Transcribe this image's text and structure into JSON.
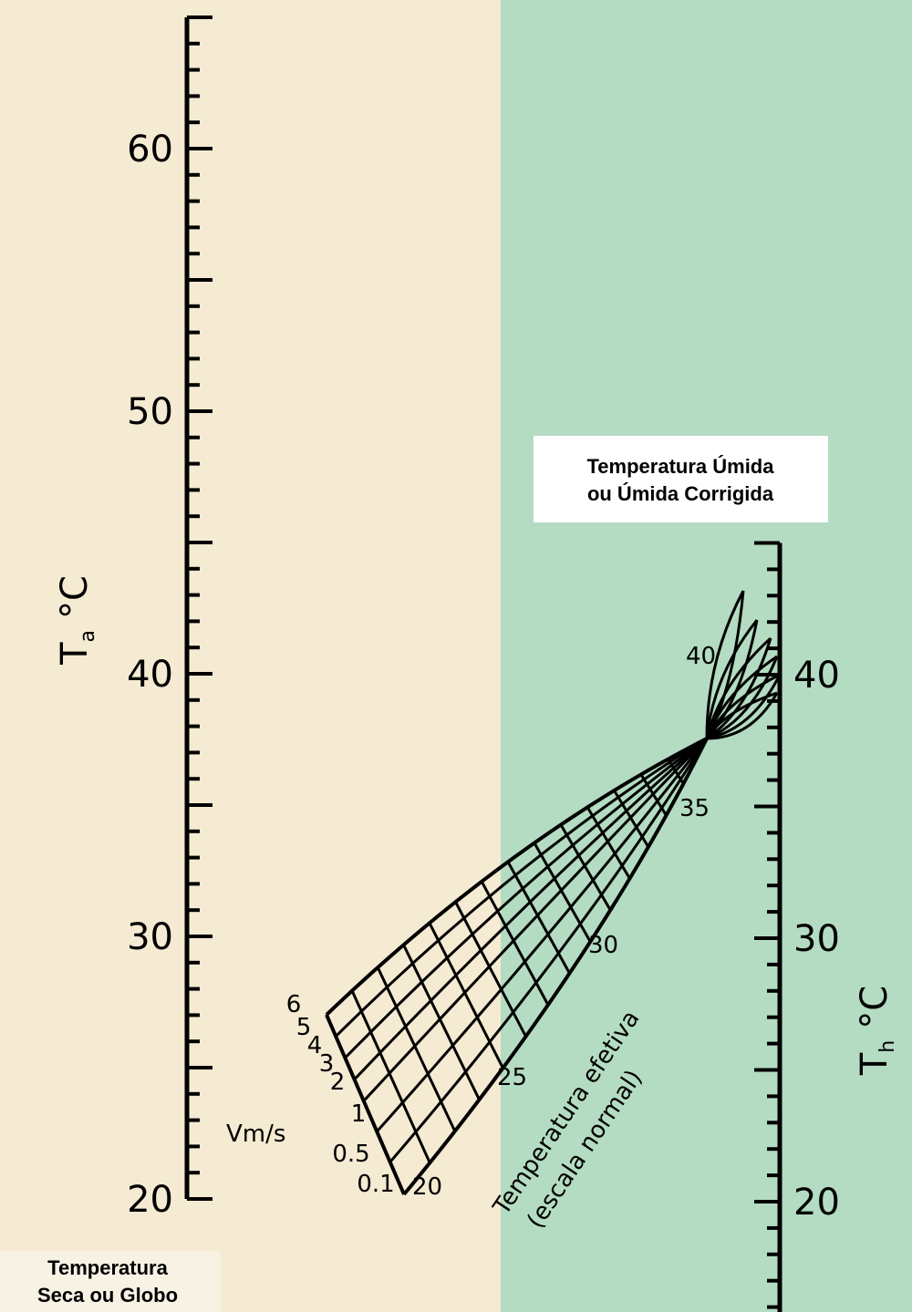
{
  "left_scale": {
    "axis_label": "T",
    "axis_sub": "a",
    "axis_unit": "°C",
    "labels": [
      "60",
      "50",
      "40",
      "30",
      "20"
    ],
    "caption": [
      "Temperatura",
      "Seca ou Globo"
    ]
  },
  "right_scale": {
    "axis_label": "T",
    "axis_sub": "h",
    "axis_unit": "°C",
    "labels": [
      "40",
      "30",
      "20"
    ],
    "caption": [
      "Temperatura Úmida",
      "ou Úmida Corrigida"
    ]
  },
  "nomogram": {
    "velocity_title": "Vm/s",
    "velocities": [
      "6",
      "5",
      "4",
      "3",
      "2",
      "1",
      "0.5",
      "0.1"
    ],
    "effective_labels": [
      "20",
      "25",
      "30",
      "35",
      "40"
    ],
    "effective_title": [
      "Temperatura efetiva",
      "(escala normal)"
    ]
  }
}
